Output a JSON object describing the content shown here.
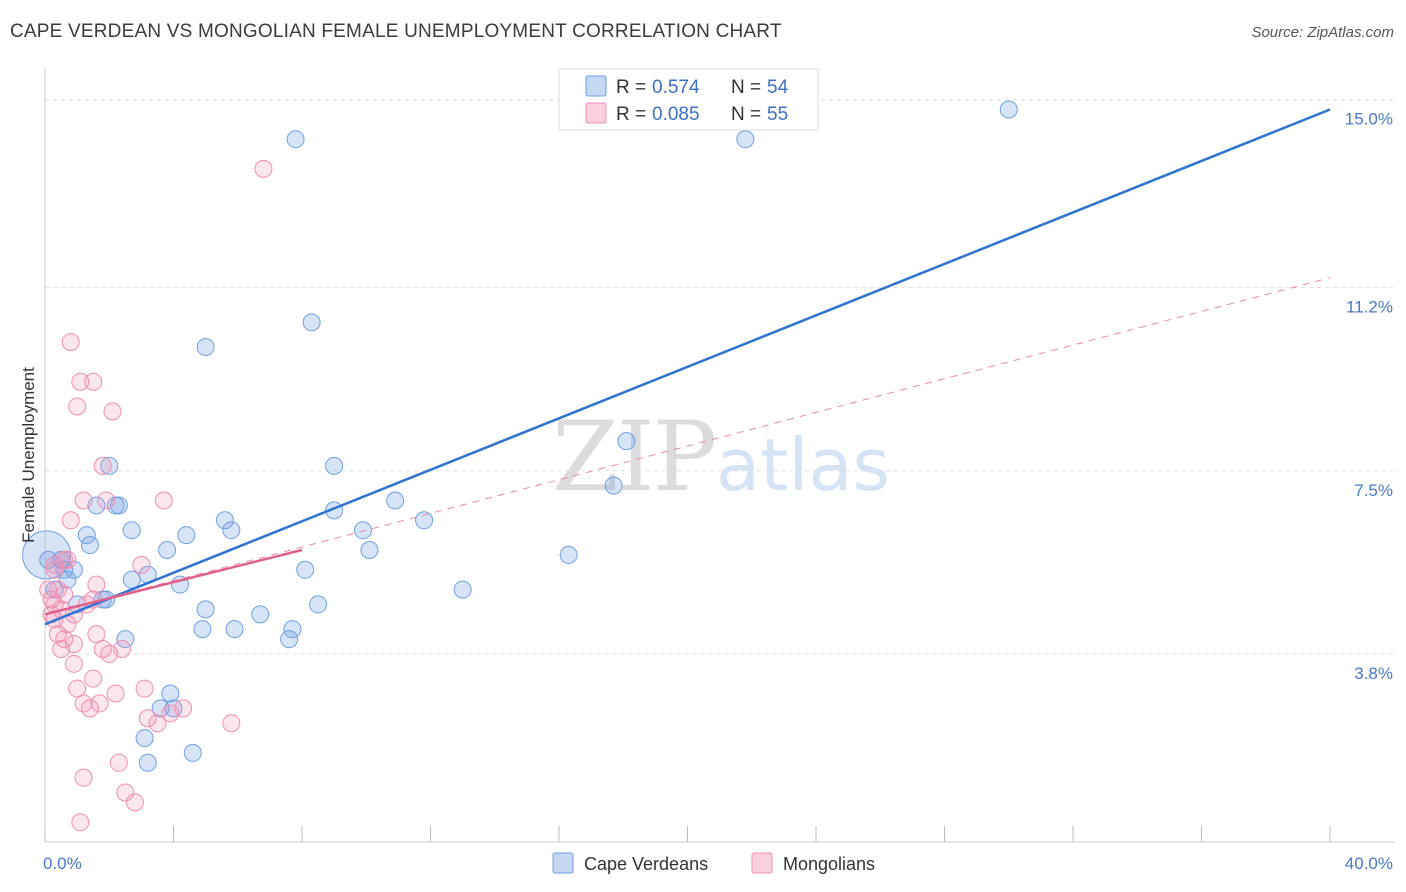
{
  "header": {
    "title": "CAPE VERDEAN VS MONGOLIAN FEMALE UNEMPLOYMENT CORRELATION CHART",
    "source": "Source: ZipAtlas.com"
  },
  "watermark": {
    "zip": "ZIP",
    "atlas": "atlas"
  },
  "legend": {
    "r_label": "R =",
    "n_label": "N =",
    "entries": [
      {
        "r": "0.574",
        "n": "54",
        "color": "#6f9fe3"
      },
      {
        "r": "0.085",
        "n": "55",
        "color": "#ef8fb0"
      }
    ]
  },
  "bottom_legend": [
    {
      "label": "Cape Verdeans",
      "color": "#6f9fe3"
    },
    {
      "label": "Mongolians",
      "color": "#ef8fb0"
    }
  ],
  "chart_data": {
    "type": "scatter",
    "title": "CAPE VERDEAN VS MONGOLIAN FEMALE UNEMPLOYMENT CORRELATION CHART",
    "xlabel": "",
    "ylabel": "Female Unemployment",
    "xlim": [
      0,
      40
    ],
    "ylim": [
      0,
      15.8
    ],
    "x_tick_labels": [
      "0.0%",
      "40.0%"
    ],
    "y_ticks": [
      {
        "value": 3.8,
        "label": "3.8%"
      },
      {
        "value": 7.5,
        "label": "7.5%"
      },
      {
        "value": 11.2,
        "label": "11.2%"
      },
      {
        "value": 15.0,
        "label": "15.0%"
      }
    ],
    "series": [
      {
        "name": "Cape Verdeans",
        "color": "#6f9fe3",
        "trend": {
          "x": [
            0,
            40
          ],
          "y": [
            4.4,
            14.8
          ],
          "style": "solid"
        },
        "points": [
          [
            0.1,
            5.7
          ],
          [
            0.3,
            5.1
          ],
          [
            0.5,
            5.7
          ],
          [
            0.6,
            5.5
          ],
          [
            0.7,
            5.3
          ],
          [
            0.9,
            5.5
          ],
          [
            1.0,
            4.8
          ],
          [
            1.3,
            6.2
          ],
          [
            1.4,
            6.0
          ],
          [
            1.6,
            6.8
          ],
          [
            1.8,
            4.9
          ],
          [
            1.9,
            4.9
          ],
          [
            2.0,
            7.6
          ],
          [
            2.2,
            6.8
          ],
          [
            2.3,
            6.8
          ],
          [
            2.5,
            4.1
          ],
          [
            2.7,
            5.3
          ],
          [
            2.7,
            6.3
          ],
          [
            3.1,
            2.1
          ],
          [
            3.2,
            1.6
          ],
          [
            3.2,
            5.4
          ],
          [
            3.6,
            2.7
          ],
          [
            3.8,
            5.9
          ],
          [
            3.9,
            3.0
          ],
          [
            4.0,
            2.7
          ],
          [
            4.2,
            5.2
          ],
          [
            4.4,
            6.2
          ],
          [
            4.6,
            1.8
          ],
          [
            4.9,
            4.3
          ],
          [
            5.0,
            4.7
          ],
          [
            5.0,
            10.0
          ],
          [
            5.9,
            4.3
          ],
          [
            5.6,
            6.5
          ],
          [
            5.8,
            6.3
          ],
          [
            6.7,
            4.6
          ],
          [
            7.6,
            4.1
          ],
          [
            7.7,
            4.3
          ],
          [
            8.1,
            5.5
          ],
          [
            7.8,
            14.2
          ],
          [
            8.3,
            10.5
          ],
          [
            8.5,
            4.8
          ],
          [
            9.0,
            7.6
          ],
          [
            9.0,
            6.7
          ],
          [
            9.9,
            6.3
          ],
          [
            10.1,
            5.9
          ],
          [
            10.9,
            6.9
          ],
          [
            11.8,
            6.5
          ],
          [
            13.0,
            5.1
          ],
          [
            16.3,
            5.8
          ],
          [
            17.7,
            7.2
          ],
          [
            18.1,
            8.1
          ],
          [
            21.8,
            14.2
          ],
          [
            30.0,
            14.8
          ],
          [
            0.05,
            5.8
          ]
        ]
      },
      {
        "name": "Mongolians",
        "color": "#ef8fb0",
        "trend": {
          "x": [
            0,
            8
          ],
          "y": [
            4.6,
            5.9
          ],
          "style": "solid"
        },
        "trend_extended": {
          "x": [
            0,
            40
          ],
          "y": [
            4.6,
            11.4
          ],
          "style": "dashed"
        },
        "points": [
          [
            0.1,
            5.1
          ],
          [
            0.2,
            4.6
          ],
          [
            0.2,
            4.9
          ],
          [
            0.3,
            4.5
          ],
          [
            0.3,
            5.6
          ],
          [
            0.4,
            4.2
          ],
          [
            0.4,
            5.1
          ],
          [
            0.5,
            3.9
          ],
          [
            0.5,
            4.7
          ],
          [
            0.6,
            5.0
          ],
          [
            0.6,
            4.1
          ],
          [
            0.7,
            5.7
          ],
          [
            0.7,
            4.4
          ],
          [
            0.8,
            10.1
          ],
          [
            0.8,
            6.5
          ],
          [
            0.9,
            3.6
          ],
          [
            0.9,
            4.6
          ],
          [
            0.9,
            4.0
          ],
          [
            1.0,
            8.8
          ],
          [
            1.0,
            3.1
          ],
          [
            1.1,
            9.3
          ],
          [
            1.2,
            6.9
          ],
          [
            1.2,
            2.8
          ],
          [
            1.2,
            1.3
          ],
          [
            1.3,
            4.8
          ],
          [
            1.4,
            2.7
          ],
          [
            1.5,
            4.9
          ],
          [
            1.5,
            3.3
          ],
          [
            1.5,
            9.3
          ],
          [
            1.6,
            5.2
          ],
          [
            1.6,
            4.2
          ],
          [
            1.7,
            2.8
          ],
          [
            1.8,
            3.9
          ],
          [
            1.8,
            7.6
          ],
          [
            1.9,
            6.9
          ],
          [
            2.0,
            3.8
          ],
          [
            2.1,
            8.7
          ],
          [
            2.2,
            3.0
          ],
          [
            2.3,
            1.6
          ],
          [
            2.4,
            3.9
          ],
          [
            2.5,
            1.0
          ],
          [
            2.8,
            0.8
          ],
          [
            3.0,
            5.6
          ],
          [
            3.1,
            3.1
          ],
          [
            3.2,
            2.5
          ],
          [
            3.5,
            2.4
          ],
          [
            3.7,
            6.9
          ],
          [
            3.9,
            2.6
          ],
          [
            4.3,
            2.7
          ],
          [
            5.8,
            2.4
          ],
          [
            6.8,
            13.6
          ],
          [
            1.1,
            0.4
          ],
          [
            0.3,
            5.5
          ],
          [
            0.6,
            5.7
          ],
          [
            0.3,
            4.8
          ]
        ]
      }
    ]
  }
}
